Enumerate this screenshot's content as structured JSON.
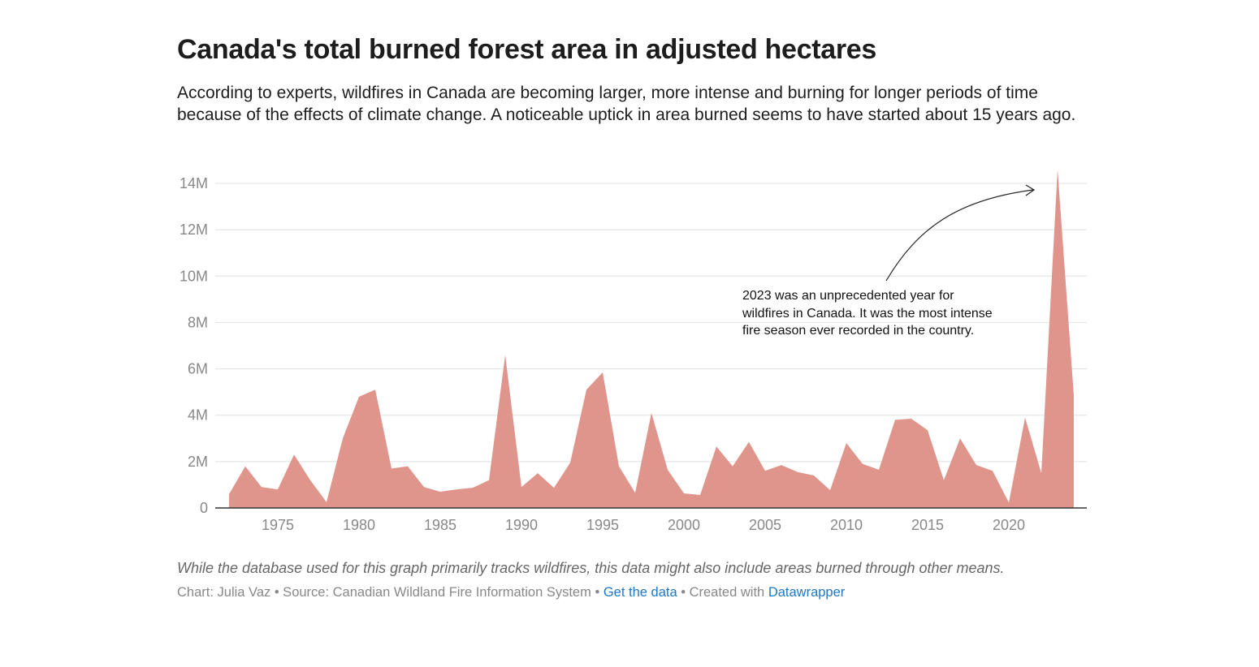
{
  "title": "Canada's total burned forest area in adjusted hectares",
  "subtitle": "According to experts, wildfires in Canada are becoming larger, more intense and burning for longer periods of time because of the effects of climate change. A noticeable uptick in area burned seems to have started about 15 years ago.",
  "note": "While the database used for this graph primarily tracks wildfires, this data might also include areas burned through other means.",
  "byline": {
    "prefix": "Chart: Julia Vaz • Source: Canadian Wildland Fire Information System • ",
    "get_data": "Get the data",
    "mid": " • Created with ",
    "datawrapper": "Datawrapper"
  },
  "colors": {
    "area": "#e0958c",
    "grid": "#e6e6e6",
    "axis": "#333333",
    "tick_text": "#888888"
  },
  "chart_data": {
    "type": "area",
    "title": "Canada's total burned forest area in adjusted hectares",
    "xlabel": "",
    "ylabel": "",
    "xlim": [
      1972,
      2024
    ],
    "ylim": [
      0,
      14000000
    ],
    "grid": true,
    "y_ticks": [
      0,
      2000000,
      4000000,
      6000000,
      8000000,
      10000000,
      12000000,
      14000000
    ],
    "y_tick_labels": [
      "0",
      "2M",
      "4M",
      "6M",
      "8M",
      "10M",
      "12M",
      "14M"
    ],
    "x_ticks": [
      1975,
      1980,
      1985,
      1990,
      1995,
      2000,
      2005,
      2010,
      2015,
      2020
    ],
    "x_tick_labels": [
      "1975",
      "1980",
      "1985",
      "1990",
      "1995",
      "2000",
      "2005",
      "2010",
      "2015",
      "2020"
    ],
    "x": [
      1972,
      1973,
      1974,
      1975,
      1976,
      1977,
      1978,
      1979,
      1980,
      1981,
      1982,
      1983,
      1984,
      1985,
      1986,
      1987,
      1988,
      1989,
      1990,
      1991,
      1992,
      1993,
      1994,
      1995,
      1996,
      1997,
      1998,
      1999,
      2000,
      2001,
      2002,
      2003,
      2004,
      2005,
      2006,
      2007,
      2008,
      2009,
      2010,
      2011,
      2012,
      2013,
      2014,
      2015,
      2016,
      2017,
      2018,
      2019,
      2020,
      2021,
      2022,
      2023,
      2024
    ],
    "values": [
      600000,
      1800000,
      900000,
      800000,
      2300000,
      1200000,
      250000,
      3000000,
      4800000,
      5100000,
      1700000,
      1800000,
      900000,
      700000,
      800000,
      870000,
      1200000,
      6600000,
      900000,
      1500000,
      870000,
      1950000,
      5100000,
      5850000,
      1800000,
      650000,
      4100000,
      1650000,
      630000,
      560000,
      2650000,
      1800000,
      2850000,
      1600000,
      1850000,
      1550000,
      1400000,
      770000,
      2800000,
      1900000,
      1650000,
      3800000,
      3850000,
      3350000,
      1200000,
      3000000,
      1850000,
      1600000,
      230000,
      3900000,
      1500000,
      14600000,
      4850000
    ],
    "annotations": [
      {
        "text": "2023 was an unprecedented year for wildfires in Canada. It was the most intense fire season ever recorded in the country.",
        "target_year": 2023
      }
    ]
  }
}
